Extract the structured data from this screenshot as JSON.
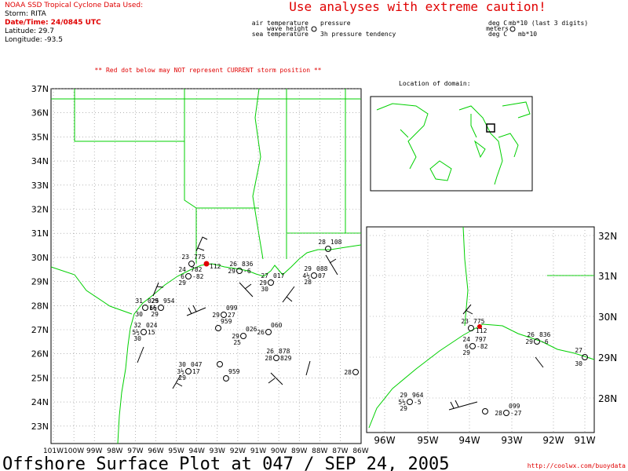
{
  "header": {
    "agency": "NOAA SSD Tropical Cyclone Data Used:",
    "storm": "Storm: RITA",
    "datetime": "Date/Time: 24/0845 UTC",
    "latitude": "Latitude: 29.7",
    "longitude": "Longitude: -93.5",
    "caution": "Use analyses with extreme caution!"
  },
  "legend": {
    "air_temperature": "air temperature",
    "wave_height": "wave height",
    "sea_temperature": "sea temperature",
    "pressure": "pressure",
    "tendency": "3h pressure tendency",
    "unit_air": "deg C",
    "unit_pressure": "mb*10 (last 3 digits)",
    "unit_wave": "meters",
    "unit_sea": "deg C",
    "unit_tendency": "mb*10"
  },
  "note": "** Red dot below may NOT represent CURRENT storm position **",
  "domain_label": "Location of domain:",
  "main_map": {
    "lat_labels": [
      "37N",
      "36N",
      "35N",
      "34N",
      "33N",
      "32N",
      "31N",
      "30N",
      "29N",
      "28N",
      "27N",
      "26N",
      "25N",
      "24N",
      "23N"
    ],
    "lon_labels": [
      "101W",
      "100W",
      "99W",
      "98W",
      "97W",
      "96W",
      "95W",
      "94W",
      "93W",
      "92W",
      "91W",
      "90W",
      "89W",
      "88W",
      "87W",
      "86W"
    ],
    "storm_label": "112",
    "stations": [
      {
        "air": "23",
        "pressure": "775"
      },
      {
        "air": "24",
        "pressure": "782",
        "wave": "6",
        "tendency": "-82",
        "sea": "29"
      },
      {
        "air": "26",
        "pressure": "836",
        "wave": "29",
        "tendency": "-6"
      },
      {
        "air": "28",
        "pressure": "108"
      },
      {
        "air": "29",
        "pressure": "088",
        "wave": "4½",
        "tendency": "07",
        "sea": "28"
      },
      {
        "air": "27",
        "pressure": "017",
        "wave": "29",
        "sea": "30"
      },
      {
        "air": "31",
        "pressure": "025",
        "sea": "30",
        "tendency": "16"
      },
      {
        "air": "29",
        "pressure": "954",
        "wave": "6½",
        "sea": "29"
      },
      {
        "air": "32",
        "pressure": "024",
        "wave": "5½",
        "tendency": "15",
        "sea": "30"
      },
      {
        "pressure": "099",
        "wave": "29",
        "tendency": "27"
      },
      {
        "pressure": "959"
      },
      {
        "pressure": "026",
        "wave": "29",
        "sea": "25"
      },
      {
        "pressure": "060",
        "wave": "26"
      },
      {
        "air": "26",
        "pressure": "878",
        "wave": "28",
        "tendency": "829"
      },
      {
        "air": "30",
        "pressure": "047",
        "wave": "3½",
        "tendency": "17",
        "sea": "29"
      },
      {
        "pressure": "959"
      },
      {
        "wave": "28"
      },
      {}
    ]
  },
  "inset_map": {
    "lat_labels": [
      "32N",
      "31N",
      "30N",
      "29N",
      "28N"
    ],
    "lon_labels": [
      "96W",
      "95W",
      "94W",
      "93W",
      "92W",
      "91W"
    ],
    "storm_label": "112",
    "stations": [
      {
        "air": "23",
        "pressure": "775"
      },
      {
        "air": "24",
        "pressure": "797",
        "wave": "6",
        "tendency": "-82",
        "sea": "29"
      },
      {
        "air": "26",
        "pressure": "836",
        "wave": "29",
        "tendency": "-6"
      },
      {
        "air": "27",
        "sea": "30"
      },
      {
        "air": "29",
        "pressure": "964",
        "wave": "5½",
        "tendency": "-5",
        "sea": "29"
      },
      {
        "pressure": "099",
        "wave": "28",
        "tendency": "-27"
      },
      {}
    ]
  },
  "footer": {
    "title": "Offshore Surface Plot at 047 / SEP 24, 2005",
    "url": "http://coolwx.com/buoydata"
  }
}
